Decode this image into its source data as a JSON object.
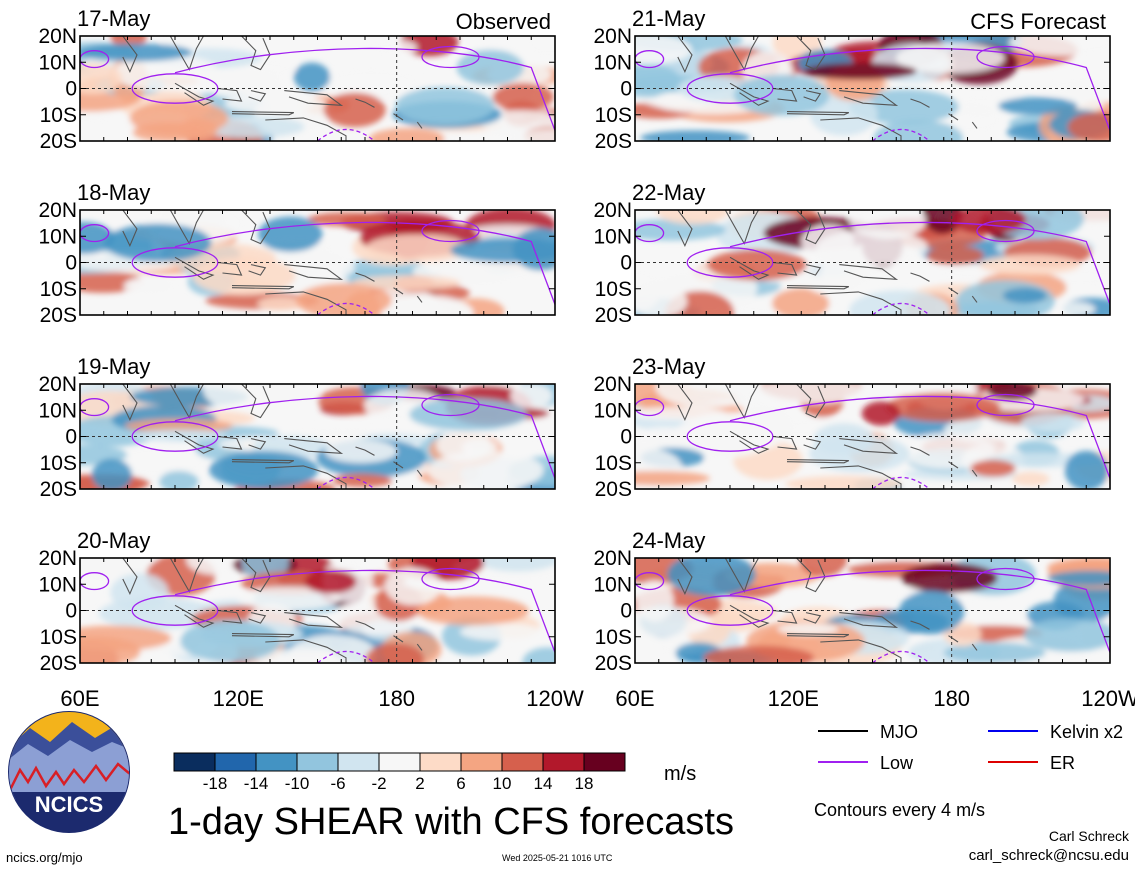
{
  "figure": {
    "title": "1-day SHEAR with CFS forecasts",
    "units": "m/s",
    "contour_note": "Contours every 4 m/s",
    "author": "Carl Schreck",
    "email": "carl_schreck@ncsu.edu",
    "site": "ncics.org/mjo",
    "timestamp": "Wed 2025-05-21 1016 UTC",
    "logo_text": "NCICS",
    "columns": [
      {
        "heading": "Observed"
      },
      {
        "heading": "CFS Forecast"
      }
    ],
    "panels": [
      {
        "date": "17-May"
      },
      {
        "date": "18-May"
      },
      {
        "date": "19-May"
      },
      {
        "date": "20-May"
      },
      {
        "date": "21-May"
      },
      {
        "date": "22-May"
      },
      {
        "date": "23-May"
      },
      {
        "date": "24-May"
      }
    ],
    "lat_labels": [
      "20N",
      "10N",
      "0",
      "10S",
      "20S"
    ],
    "lon_labels": [
      "60E",
      "120E",
      "180",
      "120W"
    ]
  },
  "colorbar": {
    "colors": [
      "#0a2d5e",
      "#2166ac",
      "#4393c3",
      "#92c5de",
      "#d1e5f0",
      "#f7f7f7",
      "#fddbc7",
      "#f4a582",
      "#d6604d",
      "#b2182b",
      "#67001f"
    ],
    "ticks": [
      "-18",
      "-14",
      "-10",
      "-6",
      "-2",
      "2",
      "6",
      "10",
      "14",
      "18"
    ]
  },
  "legend": [
    {
      "label": "MJO",
      "color": "#000000"
    },
    {
      "label": "Kelvin x2",
      "color": "#0000ee"
    },
    {
      "label": "Low",
      "color": "#a020f0"
    },
    {
      "label": "ER",
      "color": "#dd0000"
    }
  ]
}
